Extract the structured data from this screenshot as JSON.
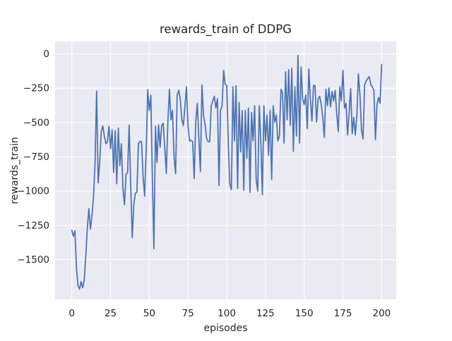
{
  "chart_data": {
    "type": "line",
    "title": "rewards_train of DDPG",
    "xlabel": "episodes",
    "ylabel": "rewards_train",
    "series_name": "rewards_train",
    "legend": "none",
    "grid": true,
    "x_start": 0,
    "x_step": 1,
    "xlim": [
      -10.8,
      209.4
    ],
    "ylim": [
      -1790,
      90
    ],
    "xticks": [
      0,
      25,
      50,
      75,
      100,
      125,
      150,
      175,
      200
    ],
    "yticks": [
      0,
      -250,
      -500,
      -750,
      -1000,
      -1250,
      -1500
    ],
    "xtick_labels": [
      "0",
      "25",
      "50",
      "75",
      "100",
      "125",
      "150",
      "175",
      "200"
    ],
    "ytick_labels": [
      "0",
      "−250",
      "−500",
      "−750",
      "−1000",
      "−1250",
      "−1500"
    ],
    "line_color": "#4C72B0",
    "bg_color": "#EAEAF2",
    "grid_color": "#FFFFFF",
    "text_color": "#262626",
    "values": [
      -1286,
      -1330,
      -1290,
      -1560,
      -1690,
      -1715,
      -1660,
      -1705,
      -1650,
      -1480,
      -1270,
      -1128,
      -1277,
      -1180,
      -1042,
      -800,
      -270,
      -940,
      -790,
      -565,
      -525,
      -600,
      -655,
      -640,
      -528,
      -690,
      -553,
      -865,
      -560,
      -947,
      -540,
      -815,
      -655,
      -980,
      -1100,
      -875,
      -866,
      -520,
      -947,
      -1341,
      -1100,
      -1016,
      -1008,
      -655,
      -638,
      -638,
      -892,
      -1036,
      -700,
      -262,
      -412,
      -300,
      -900,
      -1421,
      -527,
      -790,
      -517,
      -680,
      -521,
      -505,
      -684,
      -872,
      -500,
      -258,
      -481,
      -412,
      -752,
      -873,
      -300,
      -266,
      -326,
      -480,
      -523,
      -386,
      -240,
      -523,
      -634,
      -630,
      -640,
      -909,
      -490,
      -360,
      -617,
      -857,
      -225,
      -446,
      -514,
      -617,
      -640,
      -640,
      -377,
      -343,
      -309,
      -394,
      -326,
      -960,
      -411,
      -377,
      -120,
      -222,
      -230,
      -650,
      -950,
      -990,
      -240,
      -634,
      -232,
      -981,
      -353,
      -715,
      -412,
      -994,
      -412,
      -760,
      -395,
      -1010,
      -428,
      -634,
      -378,
      -915,
      -1000,
      -378,
      -634,
      -1026,
      -378,
      -634,
      -446,
      -740,
      -412,
      -915,
      -378,
      -498,
      -446,
      -634,
      -600,
      -258,
      -284,
      -650,
      -130,
      -480,
      -115,
      -520,
      -105,
      -710,
      -240,
      -600,
      -10,
      -650,
      -95,
      -330,
      -370,
      -300,
      -545,
      -110,
      -330,
      -490,
      -230,
      -231,
      -497,
      -326,
      -309,
      -369,
      -463,
      -608,
      -257,
      -377,
      -248,
      -386,
      -274,
      -343,
      -266,
      -437,
      -566,
      -240,
      -344,
      -120,
      -395,
      -360,
      -590,
      -430,
      -253,
      -582,
      -462,
      -590,
      -453,
      -146,
      -301,
      -556,
      -620,
      -227,
      -198,
      -180,
      -166,
      -223,
      -240,
      -266,
      -625,
      -369,
      -317,
      -360,
      -77
    ]
  }
}
